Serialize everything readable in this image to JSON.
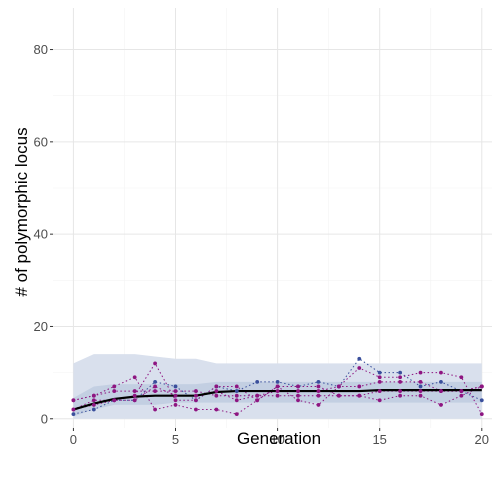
{
  "chart_data": {
    "type": "line",
    "title": "",
    "xlabel": "Generation",
    "ylabel": "# of polymorphic locus",
    "xlim": [
      -1,
      20.5
    ],
    "ylim": [
      -2,
      89
    ],
    "x_ticks": [
      0,
      5,
      10,
      15,
      20
    ],
    "x_tick_labels": [
      "0",
      "5",
      "10",
      "15",
      "20"
    ],
    "y_ticks": [
      0,
      20,
      40,
      60,
      80
    ],
    "y_tick_labels": [
      "0",
      "20",
      "40",
      "60",
      "80"
    ],
    "grid": true,
    "x": [
      0,
      1,
      2,
      3,
      4,
      5,
      6,
      7,
      8,
      9,
      10,
      11,
      12,
      13,
      14,
      15,
      16,
      17,
      18,
      19,
      20
    ],
    "bands": [
      {
        "name": "outer",
        "color": "#d9e0ed",
        "lower": [
          0,
          0,
          0,
          0,
          0,
          0,
          0,
          0,
          0,
          0,
          0,
          0,
          0,
          0,
          0,
          0,
          0,
          0,
          0,
          0,
          0
        ],
        "upper": [
          12,
          14,
          14,
          14,
          13.5,
          13,
          13,
          12,
          12,
          12,
          12,
          12,
          12,
          12,
          12,
          12,
          12,
          12,
          12,
          12,
          12
        ]
      },
      {
        "name": "inner",
        "color": "#c3cfe2",
        "lower": [
          0.5,
          2,
          3,
          3,
          3,
          3.5,
          3.5,
          3.5,
          3.5,
          3.5,
          3.5,
          3.5,
          3.5,
          3.5,
          3.5,
          3.5,
          3.5,
          3.5,
          3.5,
          3.5,
          3.5
        ],
        "upper": [
          4.5,
          7,
          7.5,
          7.5,
          7.5,
          7.5,
          7.5,
          8,
          8,
          8,
          8,
          8,
          8,
          8,
          8,
          8,
          8,
          8,
          8,
          8,
          8
        ]
      }
    ],
    "series": [
      {
        "color": "#3a4f9c",
        "style": "dotted",
        "values": [
          1,
          2,
          4,
          4,
          8,
          7,
          4,
          7,
          6,
          8,
          8,
          7,
          8,
          7,
          13,
          10,
          10,
          7,
          8,
          6,
          4
        ]
      },
      {
        "color": "#8e1581",
        "style": "dotted",
        "values": [
          2,
          3,
          4,
          4,
          7,
          5,
          5,
          6,
          4,
          5,
          6,
          6,
          6,
          7,
          7,
          8,
          8,
          8,
          6,
          6,
          7
        ]
      },
      {
        "color": "#8e1581",
        "style": "dotted",
        "values": [
          2,
          4,
          4,
          5,
          12,
          4,
          4,
          7,
          7,
          4,
          7,
          7,
          7,
          5,
          5,
          4,
          5,
          5,
          3,
          5,
          7
        ]
      },
      {
        "color": "#8e1581",
        "style": "dotted",
        "values": [
          4,
          5,
          7,
          9,
          2,
          3,
          2,
          2,
          1,
          4,
          7,
          4,
          3,
          7,
          11,
          9,
          9,
          10,
          10,
          9,
          1
        ]
      },
      {
        "color": "#8e1581",
        "style": "dotted",
        "values": [
          4,
          5,
          6,
          6,
          6,
          6,
          6,
          5,
          5,
          5,
          5,
          5,
          5,
          5,
          5,
          6,
          6,
          6,
          6,
          6,
          7
        ]
      },
      {
        "color": "#000000",
        "style": "solid",
        "values": [
          2,
          3.3,
          4.3,
          4.8,
          5,
          5,
          5,
          5.8,
          6,
          6,
          6,
          6,
          6,
          6,
          6,
          6.2,
          6.2,
          6.2,
          6.2,
          6.2,
          6.2
        ]
      }
    ]
  }
}
